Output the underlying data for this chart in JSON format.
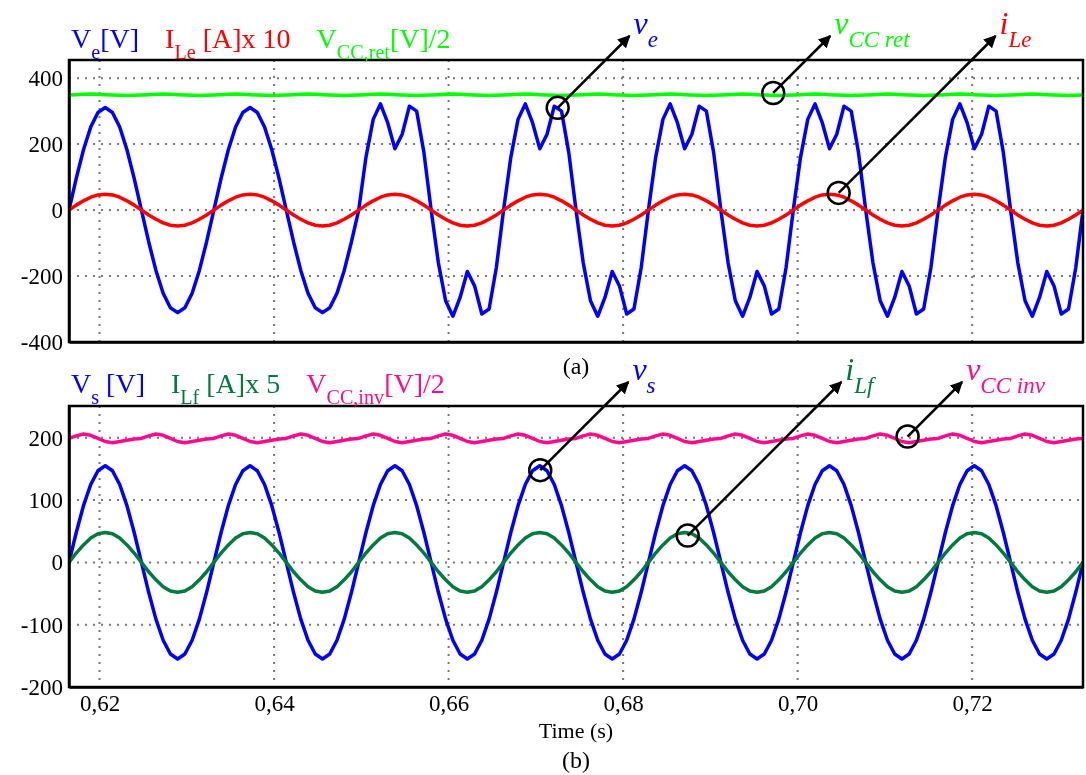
{
  "chart_data": [
    {
      "type": "line",
      "xlim": [
        0.6165,
        0.7327
      ],
      "ylim": [
        -400,
        455
      ],
      "xticks": [
        {
          "value": 0.62,
          "label": null
        },
        {
          "value": 0.64,
          "label": null
        },
        {
          "value": 0.66,
          "label": null
        },
        {
          "value": 0.68,
          "label": null
        },
        {
          "value": 0.7,
          "label": null
        },
        {
          "value": 0.72,
          "label": null
        }
      ],
      "yticks": [
        -400,
        -200,
        0,
        200,
        400
      ],
      "tick_labels": "y",
      "grid": true,
      "legend": "top left",
      "x": [
        0.6165,
        0.61733,
        0.61816,
        0.61899,
        0.61982,
        0.62065,
        0.62148,
        0.62231,
        0.62314,
        0.62397,
        0.6248,
        0.62563,
        0.62646,
        0.62729,
        0.62812,
        0.62895,
        0.62978,
        0.63061,
        0.63144,
        0.63227,
        0.6331,
        0.63393,
        0.63476,
        0.63559,
        0.63642,
        0.63725,
        0.63808,
        0.63891,
        0.63974,
        0.64057,
        0.6414,
        0.64223,
        0.64306,
        0.64389,
        0.64472,
        0.64555,
        0.64638,
        0.64721,
        0.64804,
        0.64887,
        0.6497,
        0.65053,
        0.65136,
        0.65219,
        0.65302,
        0.65385,
        0.65468,
        0.65551,
        0.65634,
        0.65717,
        0.658,
        0.65883,
        0.65966,
        0.66049,
        0.66132,
        0.66215,
        0.66298,
        0.66381,
        0.66464,
        0.66547,
        0.6663,
        0.66713,
        0.66796,
        0.66879,
        0.66962,
        0.67045,
        0.67128,
        0.67211,
        0.67294,
        0.67377,
        0.6746,
        0.67543,
        0.67626,
        0.67709,
        0.67792,
        0.67875,
        0.67958,
        0.68041,
        0.68124,
        0.68207,
        0.6829,
        0.68373,
        0.68456,
        0.68539,
        0.68622,
        0.68705,
        0.68788,
        0.68871,
        0.68954,
        0.69037,
        0.6912,
        0.69203,
        0.69286,
        0.69369,
        0.69452,
        0.69535,
        0.69618,
        0.69701,
        0.69784,
        0.69867,
        0.6995,
        0.70033,
        0.70116,
        0.70199,
        0.70282,
        0.70365,
        0.70448,
        0.70531,
        0.70614,
        0.70697,
        0.7078,
        0.70863,
        0.70946,
        0.71029,
        0.71112,
        0.71195,
        0.71278,
        0.71361,
        0.71444,
        0.71527,
        0.7161,
        0.71693,
        0.71776,
        0.71859,
        0.71942,
        0.72025,
        0.72108,
        0.72191,
        0.72274,
        0.72357,
        0.7244,
        0.72523,
        0.72606,
        0.72689,
        0.72772,
        0.72855,
        0.72938,
        0.73021,
        0.73104,
        0.73187,
        0.7327
      ],
      "series": [
        {
          "name": "V$_{e}$[V]",
          "color": "#0000ff",
          "values": [
            0,
            96,
            183,
            252,
            296,
            311,
            296,
            252,
            183,
            96,
            0,
            -96,
            -183,
            -252,
            -296,
            -311,
            -296,
            -252,
            -183,
            -96,
            0,
            96,
            183,
            252,
            296,
            311,
            296,
            252,
            183,
            96,
            0,
            -96,
            -183,
            -252,
            -296,
            -311,
            -296,
            -252,
            -183,
            -96,
            0,
            160,
            275,
            322,
            265,
            186,
            230,
            315,
            300,
            175,
            0,
            -160,
            -275,
            -322,
            -265,
            -186,
            -230,
            -315,
            -300,
            -175,
            0,
            160,
            275,
            322,
            265,
            186,
            230,
            315,
            300,
            175,
            0,
            -160,
            -275,
            -322,
            -265,
            -186,
            -230,
            -315,
            -300,
            -175,
            0,
            160,
            275,
            322,
            265,
            186,
            230,
            315,
            300,
            175,
            0,
            -160,
            -275,
            -322,
            -265,
            -186,
            -230,
            -315,
            -300,
            -175,
            0,
            160,
            275,
            322,
            265,
            186,
            230,
            315,
            300,
            175,
            0,
            -160,
            -275,
            -322,
            -265,
            -186,
            -230,
            -315,
            -300,
            -175,
            0,
            160,
            275,
            322,
            265,
            186,
            230,
            315,
            300,
            175,
            0,
            -160,
            -275,
            -322,
            -265,
            -186,
            -230,
            -315,
            -300,
            -175,
            0
          ]
        },
        {
          "name": "I$_{Le}$ [A]x 10",
          "color": "#ff0000",
          "values": [
            0,
            15,
            28,
            39,
            46,
            48,
            46,
            39,
            28,
            15,
            0,
            -15,
            -28,
            -39,
            -46,
            -48,
            -46,
            -39,
            -28,
            -15,
            0,
            15,
            28,
            39,
            46,
            48,
            46,
            39,
            28,
            15,
            0,
            -15,
            -28,
            -39,
            -46,
            -48,
            -46,
            -39,
            -28,
            -15,
            0,
            15,
            28,
            39,
            46,
            48,
            46,
            39,
            28,
            15,
            0,
            -15,
            -28,
            -39,
            -46,
            -48,
            -46,
            -39,
            -28,
            -15,
            0,
            15,
            28,
            39,
            46,
            48,
            46,
            39,
            28,
            15,
            0,
            -15,
            -28,
            -39,
            -46,
            -48,
            -46,
            -39,
            -28,
            -15,
            0,
            15,
            28,
            39,
            46,
            48,
            46,
            39,
            28,
            15,
            0,
            -15,
            -28,
            -39,
            -46,
            -48,
            -46,
            -39,
            -28,
            -15,
            0,
            15,
            28,
            39,
            46,
            48,
            46,
            39,
            28,
            15,
            0,
            -15,
            -28,
            -39,
            -46,
            -48,
            -46,
            -39,
            -28,
            -15,
            0,
            15,
            28,
            39,
            46,
            48,
            46,
            39,
            28,
            15,
            0,
            -15,
            -28,
            -39,
            -46,
            -48,
            -46,
            -39,
            -28,
            -15,
            0
          ]
        },
        {
          "name": "V$_{CC,ret}$[V]/2",
          "color": "#00ff00",
          "values": [
            349,
            350,
            351,
            352,
            351,
            350,
            349,
            348,
            347,
            348,
            349,
            350,
            351,
            352,
            351,
            350,
            349,
            348,
            347,
            348,
            349,
            350,
            351,
            352,
            351,
            350,
            349,
            348,
            347,
            348,
            349,
            350,
            351,
            352,
            351,
            350,
            349,
            348,
            347,
            348,
            349,
            350,
            351,
            352,
            351,
            350,
            349,
            348,
            347,
            348,
            349,
            350,
            351,
            352,
            351,
            350,
            349,
            348,
            347,
            348,
            349,
            350,
            351,
            352,
            351,
            350,
            349,
            348,
            347,
            348,
            349,
            350,
            351,
            352,
            351,
            350,
            349,
            348,
            347,
            348,
            349,
            350,
            351,
            352,
            351,
            350,
            349,
            348,
            347,
            348,
            349,
            350,
            351,
            352,
            351,
            350,
            349,
            348,
            347,
            348,
            349,
            350,
            351,
            352,
            351,
            350,
            349,
            348,
            347,
            348,
            349,
            350,
            351,
            352,
            351,
            350,
            349,
            348,
            347,
            348,
            349,
            350,
            351,
            352,
            351,
            350,
            349,
            348,
            347,
            348,
            349,
            350,
            351,
            352,
            351,
            350,
            349,
            348,
            347,
            348,
            349
          ]
        }
      ],
      "annotations": [
        {
          "text": "v$_{e}$",
          "x": 0.6725,
          "y": 310
        },
        {
          "text": "i$_{Le}$",
          "x": 0.7047,
          "y": 52
        },
        {
          "text": "v$_{CC ret}$",
          "x": 0.6972,
          "y": 355
        },
        "(a)"
      ]
    },
    {
      "type": "line",
      "xlim": [
        0.6165,
        0.7327
      ],
      "ylim": [
        -200,
        251
      ],
      "xticks": [
        {
          "value": 0.62,
          "label": "0,62"
        },
        {
          "value": 0.64,
          "label": "0,64"
        },
        {
          "value": 0.66,
          "label": "0,66"
        },
        {
          "value": 0.68,
          "label": "0,68"
        },
        {
          "value": 0.7,
          "label": "0,70"
        },
        {
          "value": 0.72,
          "label": "0,72"
        }
      ],
      "yticks": [
        -200,
        -100,
        0,
        100,
        200
      ],
      "grid": true,
      "legend": "top left",
      "xlabel": "Time (s)",
      "x": [
        0.6165,
        0.61733,
        0.61816,
        0.61899,
        0.61982,
        0.62065,
        0.62148,
        0.62231,
        0.62314,
        0.62397,
        0.6248,
        0.62563,
        0.62646,
        0.62729,
        0.62812,
        0.62895,
        0.62978,
        0.63061,
        0.63144,
        0.63227,
        0.6331,
        0.63393,
        0.63476,
        0.63559,
        0.63642,
        0.63725,
        0.63808,
        0.63891,
        0.63974,
        0.64057,
        0.6414,
        0.64223,
        0.64306,
        0.64389,
        0.64472,
        0.64555,
        0.64638,
        0.64721,
        0.64804,
        0.64887,
        0.6497,
        0.65053,
        0.65136,
        0.65219,
        0.65302,
        0.65385,
        0.65468,
        0.65551,
        0.65634,
        0.65717,
        0.658,
        0.65883,
        0.65966,
        0.66049,
        0.66132,
        0.66215,
        0.66298,
        0.66381,
        0.66464,
        0.66547,
        0.6663,
        0.66713,
        0.66796,
        0.66879,
        0.66962,
        0.67045,
        0.67128,
        0.67211,
        0.67294,
        0.67377,
        0.6746,
        0.67543,
        0.67626,
        0.67709,
        0.67792,
        0.67875,
        0.67958,
        0.68041,
        0.68124,
        0.68207,
        0.6829,
        0.68373,
        0.68456,
        0.68539,
        0.68622,
        0.68705,
        0.68788,
        0.68871,
        0.68954,
        0.69037,
        0.6912,
        0.69203,
        0.69286,
        0.69369,
        0.69452,
        0.69535,
        0.69618,
        0.69701,
        0.69784,
        0.69867,
        0.6995,
        0.70033,
        0.70116,
        0.70199,
        0.70282,
        0.70365,
        0.70448,
        0.70531,
        0.70614,
        0.70697,
        0.7078,
        0.70863,
        0.70946,
        0.71029,
        0.71112,
        0.71195,
        0.71278,
        0.71361,
        0.71444,
        0.71527,
        0.7161,
        0.71693,
        0.71776,
        0.71859,
        0.71942,
        0.72025,
        0.72108,
        0.72191,
        0.72274,
        0.72357,
        0.7244,
        0.72523,
        0.72606,
        0.72689,
        0.72772,
        0.72855,
        0.72938,
        0.73021,
        0.73104,
        0.73187,
        0.7327
      ],
      "series": [
        {
          "name": "V$_{s}$ [V]",
          "color": "#0000ff",
          "values": [
            0,
            48,
            91,
            125,
            147,
            155,
            147,
            125,
            91,
            48,
            0,
            -48,
            -91,
            -125,
            -147,
            -155,
            -147,
            -125,
            -91,
            -48,
            0,
            48,
            91,
            125,
            147,
            155,
            147,
            125,
            91,
            48,
            0,
            -48,
            -91,
            -125,
            -147,
            -155,
            -147,
            -125,
            -91,
            -48,
            0,
            48,
            91,
            125,
            147,
            155,
            147,
            125,
            91,
            48,
            0,
            -48,
            -91,
            -125,
            -147,
            -155,
            -147,
            -125,
            -91,
            -48,
            0,
            48,
            91,
            125,
            147,
            155,
            147,
            125,
            91,
            48,
            0,
            -48,
            -91,
            -125,
            -147,
            -155,
            -147,
            -125,
            -91,
            -48,
            0,
            48,
            91,
            125,
            147,
            155,
            147,
            125,
            91,
            48,
            0,
            -48,
            -91,
            -125,
            -147,
            -155,
            -147,
            -125,
            -91,
            -48,
            0,
            48,
            91,
            125,
            147,
            155,
            147,
            125,
            91,
            48,
            0,
            -48,
            -91,
            -125,
            -147,
            -155,
            -147,
            -125,
            -91,
            -48,
            0,
            48,
            91,
            125,
            147,
            155,
            147,
            125,
            91,
            48,
            0,
            -48,
            -91,
            -125,
            -147,
            -155,
            -147,
            -125,
            -91,
            -48,
            0
          ]
        },
        {
          "name": "I$_{Lf}$ [A]x 5",
          "color": "#007a3d",
          "values": [
            0,
            15,
            28,
            39,
            46,
            48,
            46,
            39,
            28,
            15,
            0,
            -15,
            -28,
            -39,
            -46,
            -48,
            -46,
            -39,
            -28,
            -15,
            0,
            15,
            28,
            39,
            46,
            48,
            46,
            39,
            28,
            15,
            0,
            -15,
            -28,
            -39,
            -46,
            -48,
            -46,
            -39,
            -28,
            -15,
            0,
            15,
            28,
            39,
            46,
            48,
            46,
            39,
            28,
            15,
            0,
            -15,
            -28,
            -39,
            -46,
            -48,
            -46,
            -39,
            -28,
            -15,
            0,
            15,
            28,
            39,
            46,
            48,
            46,
            39,
            28,
            15,
            0,
            -15,
            -28,
            -39,
            -46,
            -48,
            -46,
            -39,
            -28,
            -15,
            0,
            15,
            28,
            39,
            46,
            48,
            46,
            39,
            28,
            15,
            0,
            -15,
            -28,
            -39,
            -46,
            -48,
            -46,
            -39,
            -28,
            -15,
            0,
            15,
            28,
            39,
            46,
            48,
            46,
            39,
            28,
            15,
            0,
            -15,
            -28,
            -39,
            -46,
            -48,
            -46,
            -39,
            -28,
            -15,
            0,
            15,
            28,
            39,
            46,
            48,
            46,
            39,
            28,
            15,
            0,
            -15,
            -28,
            -39,
            -46,
            -48,
            -46,
            -39,
            -28,
            -15,
            0
          ]
        },
        {
          "name": "V$_{CC,inv}$[V]/2",
          "color": "#ff0a8c",
          "values": [
            199,
            203,
            206,
            204,
            199,
            194,
            192,
            194,
            196,
            198,
            199,
            203,
            206,
            204,
            199,
            194,
            192,
            194,
            196,
            198,
            199,
            203,
            206,
            204,
            199,
            194,
            192,
            194,
            196,
            198,
            199,
            203,
            206,
            204,
            199,
            194,
            192,
            194,
            196,
            198,
            199,
            203,
            206,
            204,
            199,
            194,
            192,
            194,
            196,
            198,
            199,
            203,
            206,
            204,
            199,
            194,
            192,
            194,
            196,
            198,
            199,
            203,
            206,
            204,
            199,
            194,
            192,
            194,
            196,
            198,
            199,
            203,
            206,
            204,
            199,
            194,
            192,
            194,
            196,
            198,
            199,
            203,
            206,
            204,
            199,
            194,
            192,
            194,
            196,
            198,
            199,
            203,
            206,
            204,
            199,
            194,
            192,
            194,
            196,
            198,
            199,
            203,
            206,
            204,
            199,
            194,
            192,
            194,
            196,
            198,
            199,
            203,
            206,
            204,
            199,
            194,
            192,
            194,
            196,
            198,
            199,
            203,
            206,
            204,
            199,
            194,
            192,
            194,
            196,
            198,
            199,
            203,
            206,
            204,
            199,
            194,
            192,
            194,
            196,
            198,
            199
          ]
        }
      ],
      "annotations": [
        {
          "text": "v$_{s}$",
          "x": 0.6705,
          "y": 148
        },
        {
          "text": "i$_{Lf}$",
          "x": 0.6874,
          "y": 43
        },
        {
          "text": "v$_{CC inv}$",
          "x": 0.7126,
          "y": 202
        },
        "(b)"
      ]
    }
  ]
}
